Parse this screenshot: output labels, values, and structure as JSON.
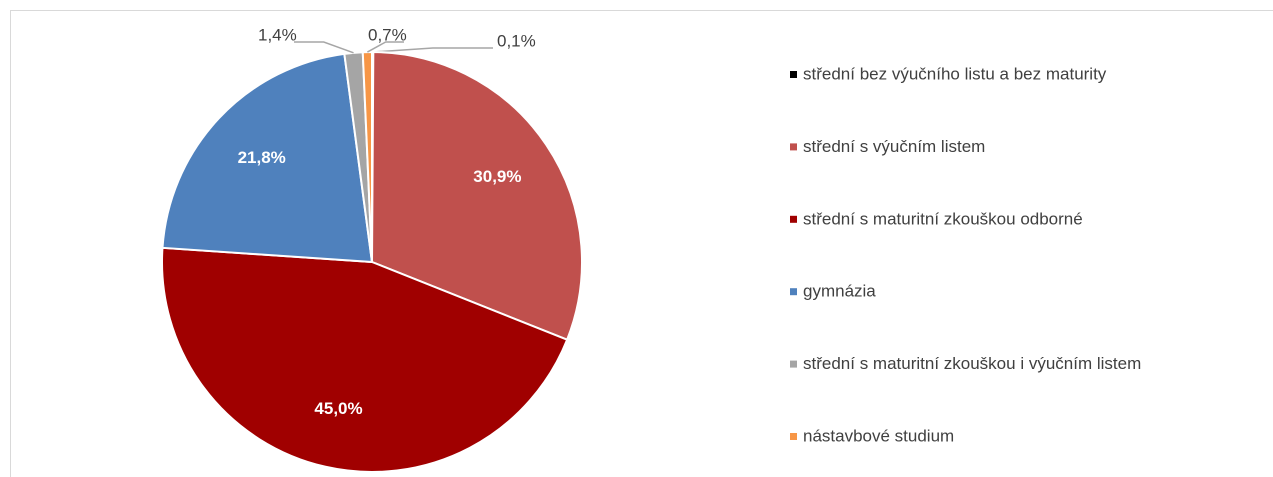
{
  "chart_data": {
    "type": "pie",
    "categories": [
      "střední bez výučního listu a bez maturity",
      "střední s výučním listem",
      "střední s maturitní zkouškou odborné",
      "gymnázia",
      "střední s maturitní zkouškou i výučním listem",
      "nástavbové studium"
    ],
    "values": [
      0.1,
      30.9,
      45.0,
      21.8,
      1.4,
      0.7
    ],
    "value_labels": [
      "0,1%",
      "30,9%",
      "45,0%",
      "21,8%",
      "1,4%",
      "0,7%"
    ],
    "colors": [
      "#000000",
      "#c0504d",
      "#a00000",
      "#4f81bd",
      "#a5a5a5",
      "#f79646"
    ],
    "legend": "right"
  }
}
